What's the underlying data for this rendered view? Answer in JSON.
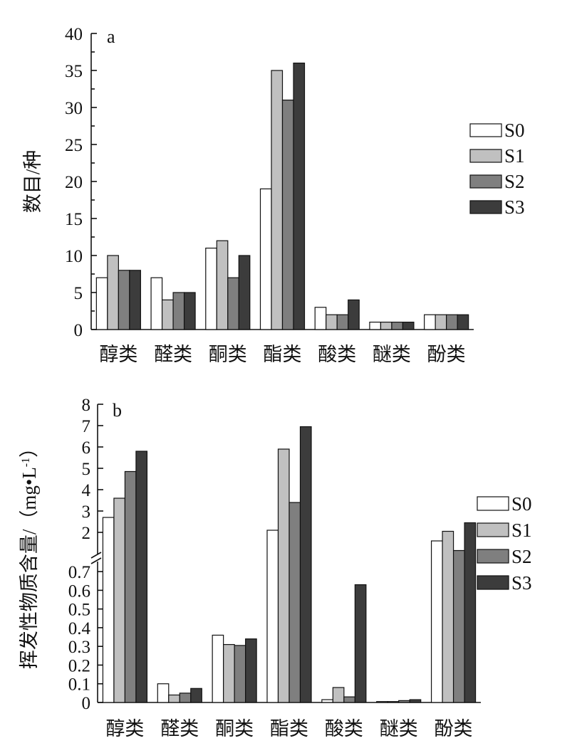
{
  "chart_data": [
    {
      "type": "bar",
      "panel_label": "a",
      "ylabel": "数目/种",
      "categories": [
        "醇类",
        "醛类",
        "酮类",
        "酯类",
        "酸类",
        "醚类",
        "酚类"
      ],
      "ylim": [
        0,
        40
      ],
      "yticks": [
        0,
        5,
        10,
        15,
        20,
        25,
        30,
        35,
        40
      ],
      "legend_position": "right",
      "series": [
        {
          "name": "S0",
          "color": "#ffffff",
          "values": [
            7,
            7,
            11,
            19,
            3,
            1,
            2
          ]
        },
        {
          "name": "S1",
          "color": "#c0c0c0",
          "values": [
            10,
            4,
            12,
            35,
            2,
            1,
            2
          ]
        },
        {
          "name": "S2",
          "color": "#7f7f7f",
          "values": [
            8,
            5,
            7,
            31,
            2,
            1,
            2
          ]
        },
        {
          "name": "S3",
          "color": "#3c3c3c",
          "values": [
            8,
            5,
            10,
            36,
            4,
            1,
            2
          ]
        }
      ]
    },
    {
      "type": "bar",
      "panel_label": "b",
      "ylabel": "挥发性物质含量/（mg•L",
      "ylabel_sup": "-1",
      "ylabel_close": "）",
      "categories": [
        "醇类",
        "醛类",
        "酮类",
        "酯类",
        "酸类",
        "醚类",
        "酚类"
      ],
      "axis_break": true,
      "lower_ylim": [
        0,
        0.75
      ],
      "lower_yticks": [
        "0",
        "0.1",
        "0.2",
        "0.3",
        "0.4",
        "0.5",
        "0.6",
        "0.7"
      ],
      "upper_ylim": [
        1,
        8
      ],
      "upper_yticks": [
        "2",
        "3",
        "4",
        "5",
        "6",
        "7",
        "8"
      ],
      "legend_position": "right",
      "series": [
        {
          "name": "S0",
          "color": "#ffffff",
          "values": [
            2.7,
            0.1,
            0.36,
            2.1,
            0.015,
            0.005,
            1.6
          ]
        },
        {
          "name": "S1",
          "color": "#c0c0c0",
          "values": [
            3.6,
            0.04,
            0.31,
            5.9,
            0.08,
            0.005,
            2.05
          ]
        },
        {
          "name": "S2",
          "color": "#7f7f7f",
          "values": [
            4.85,
            0.05,
            0.305,
            3.4,
            0.03,
            0.01,
            1.15
          ]
        },
        {
          "name": "S3",
          "color": "#3c3c3c",
          "values": [
            5.8,
            0.075,
            0.34,
            6.95,
            0.63,
            0.015,
            2.45
          ]
        }
      ]
    }
  ]
}
